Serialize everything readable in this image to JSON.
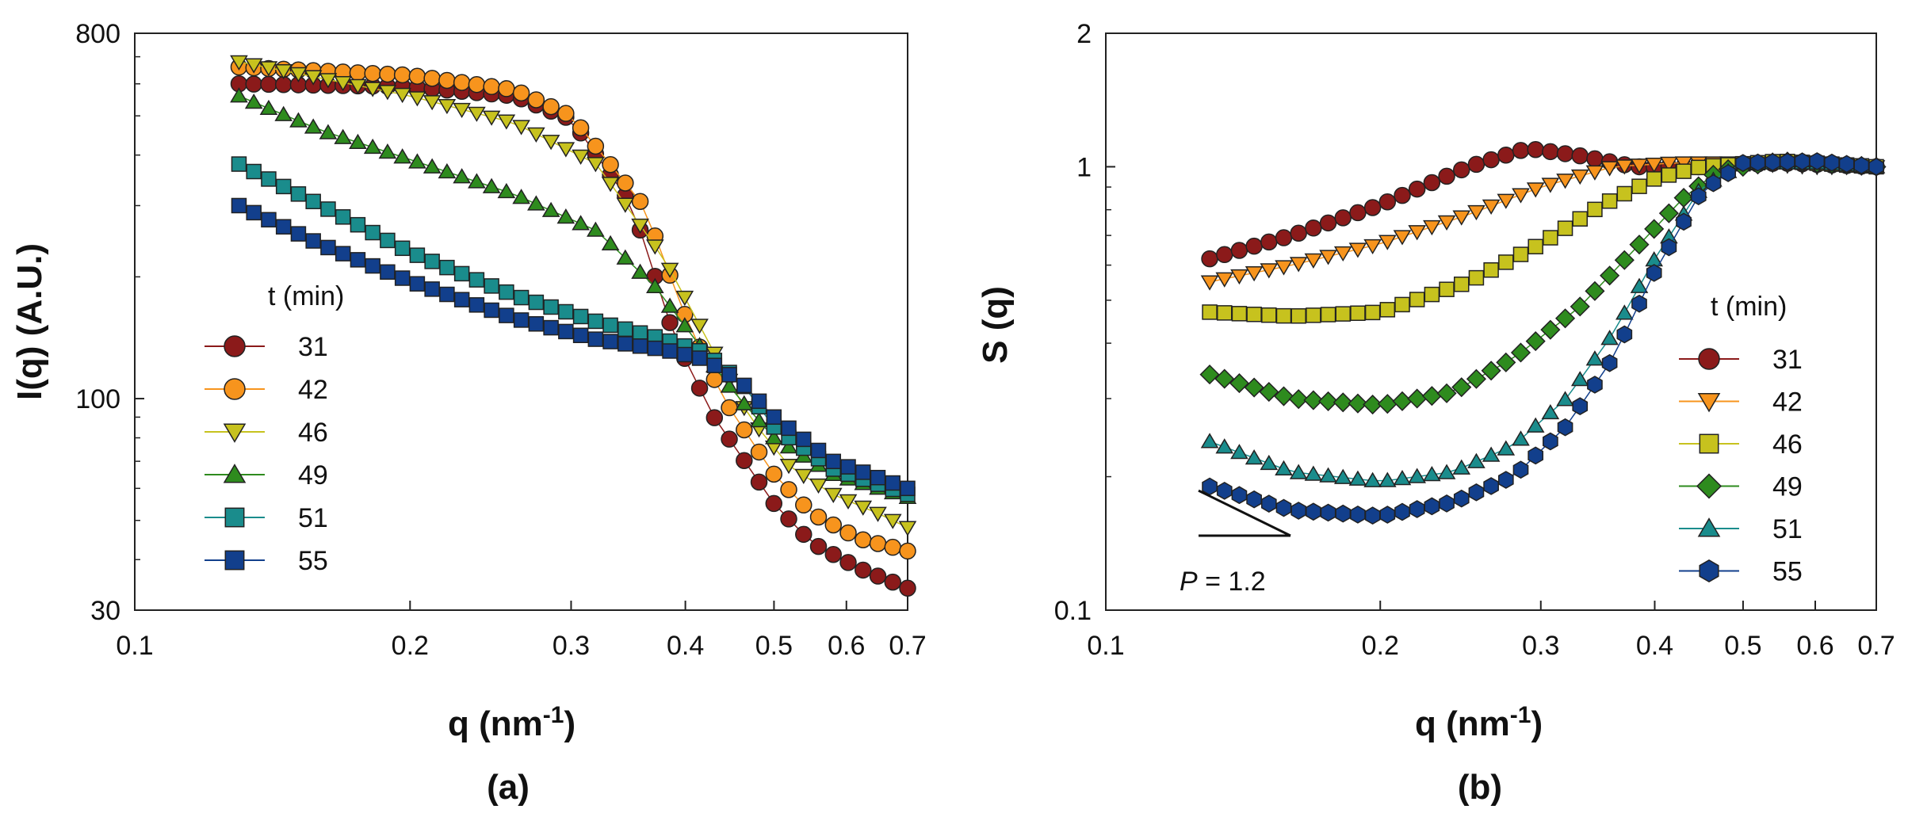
{
  "figure": {
    "panels": [
      {
        "label": "(a)"
      },
      {
        "label": "(b)"
      }
    ]
  },
  "chart_data": [
    {
      "type": "scatter",
      "panel": "(a)",
      "xlabel": "q (nm-1)",
      "ylabel": "I(q)  (A.U.)",
      "xscale": "log",
      "yscale": "log",
      "xlim": [
        0.1,
        0.7
      ],
      "ylim": [
        30,
        800
      ],
      "xticks": [
        0.1,
        0.2,
        0.3,
        0.4,
        0.5,
        0.6,
        0.7
      ],
      "xtick_labels": [
        "0.1",
        "0.2",
        "0.3",
        "0.4",
        "0.5",
        "0.6",
        "0.7"
      ],
      "yticks": [
        30,
        100,
        800
      ],
      "ytick_labels": [
        "30",
        "100",
        "800"
      ],
      "legend": {
        "title": "t (min)",
        "position": "left-middle"
      },
      "series": [
        {
          "name": "31",
          "marker": "circle",
          "color": "#8b1a1a",
          "anchors": [
            [
              0.13,
              600
            ],
            [
              0.2,
              590
            ],
            [
              0.26,
              560
            ],
            [
              0.3,
              490
            ],
            [
              0.35,
              300
            ],
            [
              0.39,
              140
            ],
            [
              0.43,
              90
            ],
            [
              0.5,
              55
            ],
            [
              0.55,
              44
            ],
            [
              0.62,
              38
            ],
            [
              0.7,
              34
            ]
          ]
        },
        {
          "name": "42",
          "marker": "circle",
          "color": "#f7941d",
          "anchors": [
            [
              0.13,
              660
            ],
            [
              0.2,
              630
            ],
            [
              0.26,
              580
            ],
            [
              0.3,
              500
            ],
            [
              0.36,
              300
            ],
            [
              0.4,
              160
            ],
            [
              0.44,
              100
            ],
            [
              0.5,
              65
            ],
            [
              0.55,
              52
            ],
            [
              0.62,
              45
            ],
            [
              0.7,
              42
            ]
          ]
        },
        {
          "name": "46",
          "marker": "triangle-down",
          "color": "#c7c21e",
          "anchors": [
            [
              0.13,
              680
            ],
            [
              0.2,
              560
            ],
            [
              0.26,
              480
            ],
            [
              0.32,
              380
            ],
            [
              0.38,
              220
            ],
            [
              0.43,
              130
            ],
            [
              0.47,
              90
            ],
            [
              0.52,
              68
            ],
            [
              0.58,
              58
            ],
            [
              0.65,
              52
            ],
            [
              0.7,
              48
            ]
          ]
        },
        {
          "name": "49",
          "marker": "triangle-up",
          "color": "#2e8b1e",
          "anchors": [
            [
              0.13,
              560
            ],
            [
              0.16,
              460
            ],
            [
              0.2,
              390
            ],
            [
              0.26,
              320
            ],
            [
              0.32,
              260
            ],
            [
              0.37,
              190
            ],
            [
              0.41,
              140
            ],
            [
              0.45,
              105
            ],
            [
              0.5,
              80
            ],
            [
              0.58,
              65
            ],
            [
              0.7,
              57
            ]
          ]
        },
        {
          "name": "51",
          "marker": "square",
          "color": "#1a8c8c",
          "anchors": [
            [
              0.13,
              380
            ],
            [
              0.16,
              300
            ],
            [
              0.2,
              230
            ],
            [
              0.26,
              180
            ],
            [
              0.32,
              155
            ],
            [
              0.38,
              140
            ],
            [
              0.42,
              130
            ],
            [
              0.46,
              110
            ],
            [
              0.5,
              85
            ],
            [
              0.58,
              67
            ],
            [
              0.7,
              58
            ]
          ]
        },
        {
          "name": "55",
          "marker": "square",
          "color": "#123f8c",
          "anchors": [
            [
              0.13,
              300
            ],
            [
              0.16,
              240
            ],
            [
              0.2,
              195
            ],
            [
              0.26,
              158
            ],
            [
              0.32,
              140
            ],
            [
              0.38,
              132
            ],
            [
              0.42,
              125
            ],
            [
              0.46,
              110
            ],
            [
              0.5,
              90
            ],
            [
              0.58,
              70
            ],
            [
              0.7,
              60
            ]
          ]
        }
      ]
    },
    {
      "type": "scatter",
      "panel": "(b)",
      "xlabel": "q (nm-1)",
      "ylabel": "S (q)",
      "xscale": "log",
      "yscale": "log",
      "xlim": [
        0.1,
        0.7
      ],
      "ylim": [
        0.1,
        2
      ],
      "xticks": [
        0.1,
        0.2,
        0.3,
        0.4,
        0.5,
        0.6,
        0.7
      ],
      "xtick_labels": [
        "0.1",
        "0.2",
        "0.3",
        "0.4",
        "0.5",
        "0.6",
        "0.7"
      ],
      "yticks": [
        0.1,
        1,
        2
      ],
      "ytick_labels": [
        "0.1",
        "1",
        "2"
      ],
      "legend": {
        "title": "t (min)",
        "position": "right-middle"
      },
      "annotation": {
        "text_italic": "P",
        "text_rest": " = 1.2",
        "slope": -1.2
      },
      "series": [
        {
          "name": "31",
          "marker": "circle",
          "color": "#8b1a1a",
          "anchors": [
            [
              0.13,
              0.62
            ],
            [
              0.16,
              0.7
            ],
            [
              0.2,
              0.82
            ],
            [
              0.25,
              1.0
            ],
            [
              0.29,
              1.1
            ],
            [
              0.33,
              1.06
            ],
            [
              0.38,
              1.0
            ],
            [
              0.45,
              1.0
            ],
            [
              0.55,
              1.02
            ],
            [
              0.7,
              1.0
            ]
          ]
        },
        {
          "name": "42",
          "marker": "triangle-down",
          "color": "#f7941d",
          "anchors": [
            [
              0.13,
              0.55
            ],
            [
              0.16,
              0.6
            ],
            [
              0.2,
              0.67
            ],
            [
              0.25,
              0.78
            ],
            [
              0.3,
              0.9
            ],
            [
              0.36,
              1.0
            ],
            [
              0.42,
              1.02
            ],
            [
              0.5,
              1.02
            ],
            [
              0.6,
              1.0
            ],
            [
              0.7,
              1.0
            ]
          ]
        },
        {
          "name": "46",
          "marker": "square",
          "color": "#c7c21e",
          "anchors": [
            [
              0.13,
              0.47
            ],
            [
              0.16,
              0.46
            ],
            [
              0.2,
              0.47
            ],
            [
              0.25,
              0.55
            ],
            [
              0.3,
              0.67
            ],
            [
              0.35,
              0.82
            ],
            [
              0.4,
              0.94
            ],
            [
              0.45,
              1.0
            ],
            [
              0.55,
              1.03
            ],
            [
              0.7,
              1.0
            ]
          ]
        },
        {
          "name": "49",
          "marker": "diamond",
          "color": "#2e8b1e",
          "anchors": [
            [
              0.13,
              0.34
            ],
            [
              0.16,
              0.3
            ],
            [
              0.2,
              0.29
            ],
            [
              0.24,
              0.31
            ],
            [
              0.28,
              0.37
            ],
            [
              0.33,
              0.48
            ],
            [
              0.38,
              0.65
            ],
            [
              0.43,
              0.85
            ],
            [
              0.47,
              0.98
            ],
            [
              0.55,
              1.03
            ],
            [
              0.7,
              1.0
            ]
          ]
        },
        {
          "name": "51",
          "marker": "triangle-up",
          "color": "#1a8c8c",
          "anchors": [
            [
              0.13,
              0.24
            ],
            [
              0.16,
              0.205
            ],
            [
              0.2,
              0.195
            ],
            [
              0.24,
              0.205
            ],
            [
              0.28,
              0.235
            ],
            [
              0.32,
              0.3
            ],
            [
              0.36,
              0.42
            ],
            [
              0.4,
              0.62
            ],
            [
              0.45,
              0.9
            ],
            [
              0.5,
              1.02
            ],
            [
              0.6,
              1.02
            ],
            [
              0.7,
              1.0
            ]
          ]
        },
        {
          "name": "55",
          "marker": "hexagon",
          "color": "#123f8c",
          "anchors": [
            [
              0.13,
              0.19
            ],
            [
              0.16,
              0.168
            ],
            [
              0.2,
              0.163
            ],
            [
              0.24,
              0.175
            ],
            [
              0.28,
              0.2
            ],
            [
              0.32,
              0.26
            ],
            [
              0.36,
              0.37
            ],
            [
              0.4,
              0.58
            ],
            [
              0.45,
              0.88
            ],
            [
              0.5,
              1.02
            ],
            [
              0.6,
              1.03
            ],
            [
              0.7,
              1.0
            ]
          ]
        }
      ]
    }
  ]
}
